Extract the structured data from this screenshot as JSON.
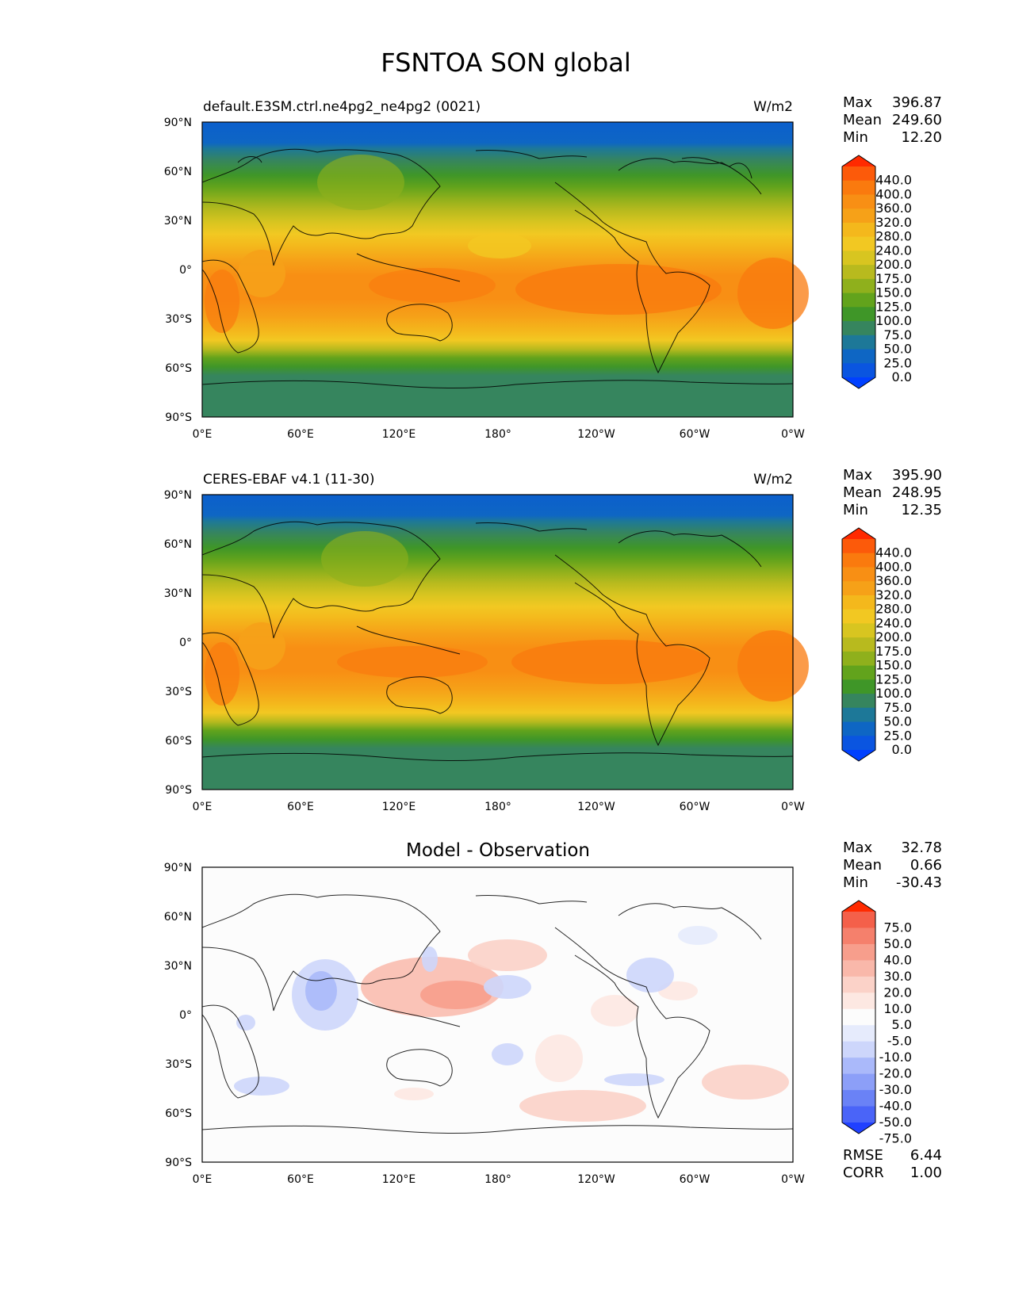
{
  "figure": {
    "title": "FSNTOA SON global"
  },
  "axes": {
    "lat_ticks": [
      "90°N",
      "60°N",
      "30°N",
      "0°",
      "30°S",
      "60°S",
      "90°S"
    ],
    "lon_ticks": [
      "0°E",
      "60°E",
      "120°E",
      "180°",
      "120°W",
      "60°W",
      "0°W"
    ]
  },
  "stat_labels": {
    "max": "Max",
    "mean": "Mean",
    "min": "Min",
    "rmse": "RMSE",
    "corr": "CORR"
  },
  "panels": [
    {
      "left_title": "default.E3SM.ctrl.ne4pg2_ne4pg2 (0021)",
      "center_title": "",
      "units": "W/m2",
      "stats": {
        "max": "396.87",
        "mean": "249.60",
        "min": "12.20"
      },
      "colorbar": {
        "labels": [
          "440.0",
          "400.0",
          "360.0",
          "320.0",
          "280.0",
          "240.0",
          "200.0",
          "175.0",
          "150.0",
          "125.0",
          "100.0",
          "75.0",
          "50.0",
          "25.0",
          "0.0"
        ],
        "colors": [
          "#ff2a00",
          "#fc5a0a",
          "#fa7a0e",
          "#f88f14",
          "#f6a118",
          "#f4b81c",
          "#f2c822",
          "#d8c520",
          "#b8ba1e",
          "#8fb01c",
          "#62a31c",
          "#3f9628",
          "#36855e",
          "#1d7898",
          "#0e66c4",
          "#0a55e0",
          "#0040ff"
        ]
      }
    },
    {
      "left_title": "CERES-EBAF v4.1 (11-30)",
      "center_title": "",
      "units": "W/m2",
      "stats": {
        "max": "395.90",
        "mean": "248.95",
        "min": "12.35"
      },
      "colorbar": {
        "labels": [
          "440.0",
          "400.0",
          "360.0",
          "320.0",
          "280.0",
          "240.0",
          "200.0",
          "175.0",
          "150.0",
          "125.0",
          "100.0",
          "75.0",
          "50.0",
          "25.0",
          "0.0"
        ],
        "colors": [
          "#ff2a00",
          "#fc5a0a",
          "#fa7a0e",
          "#f88f14",
          "#f6a118",
          "#f4b81c",
          "#f2c822",
          "#d8c520",
          "#b8ba1e",
          "#8fb01c",
          "#62a31c",
          "#3f9628",
          "#36855e",
          "#1d7898",
          "#0e66c4",
          "#0a55e0",
          "#0040ff"
        ]
      }
    },
    {
      "left_title": "",
      "center_title": "Model - Observation",
      "units": "",
      "stats": {
        "max": "32.78",
        "mean": "0.66",
        "min": "-30.43",
        "rmse": "6.44",
        "corr": "1.00"
      },
      "colorbar": {
        "labels": [
          "75.0",
          "50.0",
          "40.0",
          "30.0",
          "20.0",
          "10.0",
          "5.0",
          "-5.0",
          "-10.0",
          "-20.0",
          "-30.0",
          "-40.0",
          "-50.0",
          "-75.0"
        ],
        "colors": [
          "#ff2a00",
          "#f4604a",
          "#f5806c",
          "#f79e8c",
          "#f9b8aa",
          "#fbd2c8",
          "#fde8e2",
          "#fcfcfc",
          "#e6ebfc",
          "#cdd6fb",
          "#aab9fa",
          "#8c9ff8",
          "#6a82f6",
          "#4a64f8",
          "#2040ff"
        ]
      }
    }
  ],
  "chart_data": {
    "type": "heatmap",
    "title": "FSNTOA SON global",
    "x_ticks": [
      "0°E",
      "60°E",
      "120°E",
      "180°",
      "120°W",
      "60°W",
      "0°W"
    ],
    "y_ticks": [
      "90°N",
      "60°N",
      "30°N",
      "0°",
      "30°S",
      "60°S",
      "90°S"
    ],
    "xlim": [
      0,
      360
    ],
    "ylim": [
      -90,
      90
    ],
    "panels": [
      {
        "name": "default.E3SM.ctrl.ne4pg2_ne4pg2 (0021)",
        "units": "W/m2",
        "max": 396.87,
        "mean": 249.6,
        "min": 12.2,
        "levels": [
          0,
          25,
          50,
          75,
          100,
          125,
          150,
          175,
          200,
          240,
          280,
          320,
          360,
          400,
          440
        ]
      },
      {
        "name": "CERES-EBAF v4.1 (11-30)",
        "units": "W/m2",
        "max": 395.9,
        "mean": 248.95,
        "min": 12.35,
        "levels": [
          0,
          25,
          50,
          75,
          100,
          125,
          150,
          175,
          200,
          240,
          280,
          320,
          360,
          400,
          440
        ]
      },
      {
        "name": "Model - Observation",
        "max": 32.78,
        "mean": 0.66,
        "min": -30.43,
        "rmse": 6.44,
        "corr": 1.0,
        "levels": [
          -75,
          -50,
          -40,
          -30,
          -20,
          -10,
          -5,
          5,
          10,
          20,
          30,
          40,
          50,
          75
        ]
      }
    ]
  }
}
